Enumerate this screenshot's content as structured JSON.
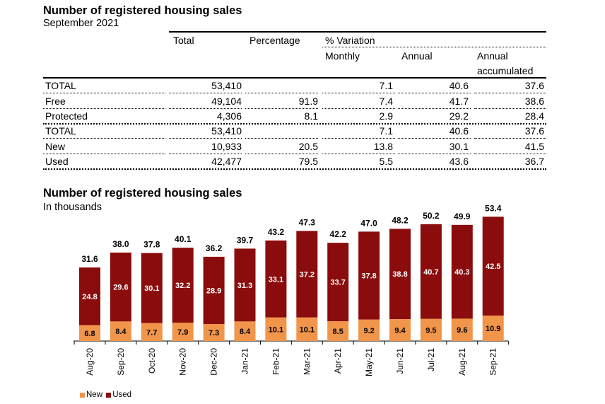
{
  "header": {
    "title": "Number of registered housing sales",
    "subtitle": "September 2021"
  },
  "table": {
    "columns": {
      "total": "Total",
      "percentage": "Percentage",
      "variation": "% Variation",
      "monthly": "Monthly",
      "annual": "Annual",
      "annual_accum_1": "Annual",
      "annual_accum_2": "accumulated"
    },
    "rows": [
      {
        "label": "TOTAL",
        "total": "53,410",
        "percentage": "",
        "monthly": "7.1",
        "annual": "40.6",
        "accumulated": "37.6"
      },
      {
        "label": "Free",
        "total": "49,104",
        "percentage": "91.9",
        "monthly": "7.4",
        "annual": "41.7",
        "accumulated": "38.6"
      },
      {
        "label": "Protected",
        "total": "4,306",
        "percentage": "8.1",
        "monthly": "2.9",
        "annual": "29.2",
        "accumulated": "28.4"
      },
      {
        "label": "TOTAL",
        "total": "53,410",
        "percentage": "",
        "monthly": "7.1",
        "annual": "40.6",
        "accumulated": "37.6"
      },
      {
        "label": "New",
        "total": "10,933",
        "percentage": "20.5",
        "monthly": "13.8",
        "annual": "30.1",
        "accumulated": "41.5"
      },
      {
        "label": "Used",
        "total": "42,477",
        "percentage": "79.5",
        "monthly": "5.5",
        "annual": "43.6",
        "accumulated": "36.7"
      }
    ]
  },
  "chart_section": {
    "title": "Number of registered housing sales",
    "subtitle": "In thousands"
  },
  "colors": {
    "new": "#f0954a",
    "used": "#8b0c0c"
  },
  "chart_data": {
    "type": "bar",
    "stacked": true,
    "title": "Number of registered housing sales",
    "subtitle": "In thousands",
    "categories": [
      "Aug-20",
      "Sep-20",
      "Oct-20",
      "Nov-20",
      "Dec-20",
      "Jan-21",
      "Feb-21",
      "Mar-21",
      "Apr-21",
      "May-21",
      "Jun-21",
      "Jul-21",
      "Aug-21",
      "Sep-21"
    ],
    "series": [
      {
        "name": "New",
        "values": [
          6.8,
          8.4,
          7.7,
          7.9,
          7.3,
          8.4,
          10.1,
          10.1,
          8.5,
          9.2,
          9.4,
          9.5,
          9.6,
          10.9
        ]
      },
      {
        "name": "Used",
        "values": [
          24.8,
          29.6,
          30.1,
          32.2,
          28.9,
          31.3,
          33.1,
          37.2,
          33.7,
          37.8,
          38.8,
          40.7,
          40.3,
          42.5
        ]
      }
    ],
    "totals": [
      31.6,
      38.0,
      37.8,
      40.1,
      36.2,
      39.7,
      43.2,
      47.3,
      42.2,
      47.0,
      48.2,
      50.2,
      49.9,
      53.4
    ],
    "ylim": [
      0,
      53.4
    ],
    "grid": false,
    "legend_position": "bottom-left"
  }
}
